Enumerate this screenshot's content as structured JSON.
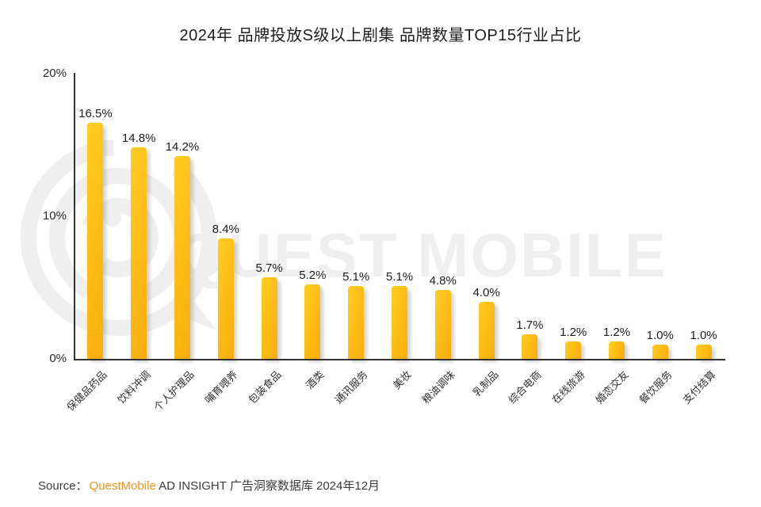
{
  "title": "2024年 品牌投放S级以上剧集 品牌数量TOP15行业占比",
  "watermark": {
    "logo": "questmobile-logo",
    "text": "QUEST MOBILE"
  },
  "source": {
    "label": "Source：",
    "brand": "QuestMobile",
    "detail": " AD INSIGHT 广告洞察数据库 2024年12月"
  },
  "colors": {
    "bar_gradient_start": "#FFCD22",
    "bar_gradient_end": "#F9AD10",
    "brand_orange": "#F7941E",
    "axis": "#333333",
    "text": "#1D1D1D",
    "watermark_gray": "#EFEFEF"
  },
  "chart_data": {
    "type": "bar",
    "title": "2024年 品牌投放S级以上剧集 品牌数量TOP15行业占比",
    "categories": [
      "保健品药品",
      "饮料冲调",
      "个人护理品",
      "哺育喂养",
      "包装食品",
      "酒类",
      "通讯服务",
      "美妆",
      "粮油调味",
      "乳制品",
      "综合电商",
      "在线旅游",
      "婚恋交友",
      "餐饮服务",
      "支付结算"
    ],
    "values": [
      16.5,
      14.8,
      14.2,
      8.4,
      5.7,
      5.2,
      5.1,
      5.1,
      4.8,
      4.0,
      1.7,
      1.2,
      1.2,
      1.0,
      1.0
    ],
    "value_labels": [
      "16.5%",
      "14.8%",
      "14.2%",
      "8.4%",
      "5.7%",
      "5.2%",
      "5.1%",
      "5.1%",
      "4.8%",
      "4.0%",
      "1.7%",
      "1.2%",
      "1.2%",
      "1.0%",
      "1.0%"
    ],
    "xlabel": "",
    "ylabel": "",
    "ylim": [
      0,
      20
    ],
    "yticks": [
      "0%",
      "10%",
      "20%"
    ],
    "grid": false,
    "legend": null
  }
}
